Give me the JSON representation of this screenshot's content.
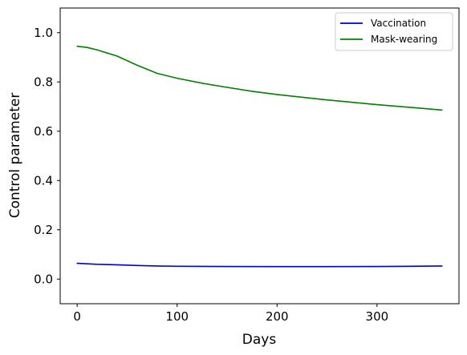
{
  "chart_data": {
    "type": "line",
    "title": "",
    "xlabel": "Days",
    "ylabel": "Control parameter",
    "xlim": [
      -17,
      382
    ],
    "ylim": [
      -0.1,
      1.1
    ],
    "xticks": [
      0,
      100,
      200,
      300
    ],
    "yticks": [
      0.0,
      0.2,
      0.4,
      0.6,
      0.8,
      1.0
    ],
    "xtick_labels": [
      "0",
      "100",
      "200",
      "300"
    ],
    "ytick_labels": [
      "0.0",
      "0.2",
      "0.4",
      "0.6",
      "0.8",
      "1.0"
    ],
    "grid": false,
    "legend_position": "top-right",
    "series": [
      {
        "name": "Vaccination",
        "color": "#0000cc",
        "x": [
          0,
          10,
          20,
          40,
          60,
          80,
          100,
          150,
          200,
          250,
          300,
          365
        ],
        "y": [
          0.064,
          0.062,
          0.06,
          0.058,
          0.055,
          0.053,
          0.052,
          0.051,
          0.0505,
          0.0505,
          0.051,
          0.053
        ]
      },
      {
        "name": "Mask-wearing",
        "color": "#008000",
        "x": [
          0,
          10,
          20,
          40,
          60,
          80,
          100,
          125,
          150,
          175,
          200,
          250,
          300,
          365
        ],
        "y": [
          0.945,
          0.94,
          0.93,
          0.905,
          0.868,
          0.835,
          0.815,
          0.795,
          0.778,
          0.762,
          0.749,
          0.727,
          0.708,
          0.686
        ]
      }
    ]
  }
}
